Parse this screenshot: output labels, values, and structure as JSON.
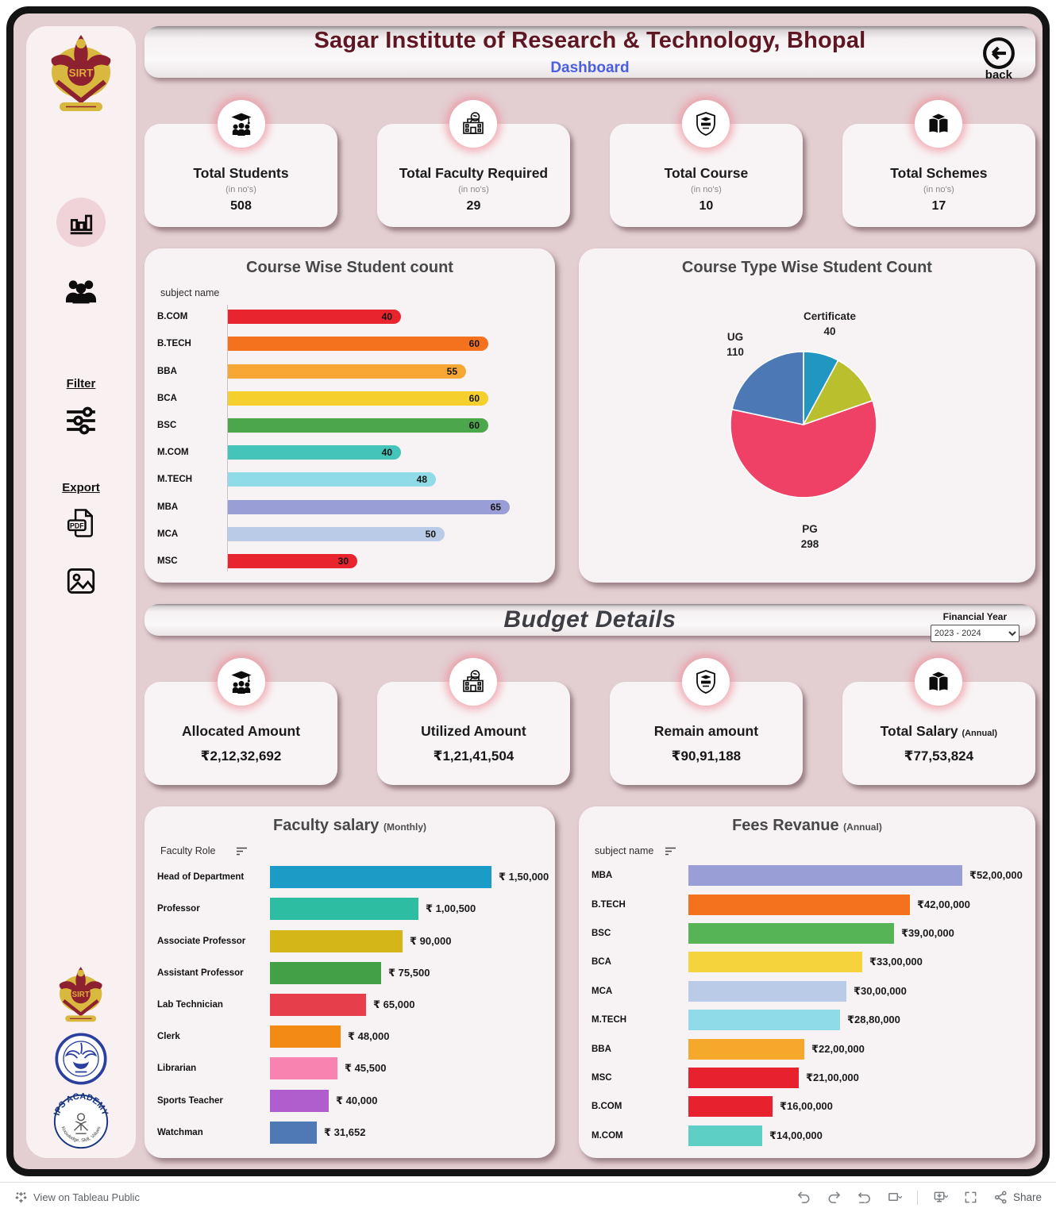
{
  "header": {
    "title": "Sagar Institute of Research & Technology, Bhopal",
    "subtitle": "Dashboard",
    "back_label": "back"
  },
  "sidebar": {
    "filter_label": "Filter",
    "export_label": "Export",
    "icons": [
      "bar-chart-icon",
      "people-icon",
      "sliders-icon",
      "pdf-export-icon",
      "image-export-icon"
    ],
    "logos": {
      "sirt_text": "SIRT",
      "ips_top_text": "IPS ACADEMY",
      "ips_bottom_text": "Knowledge, Skill, Values"
    }
  },
  "kpis_top": [
    {
      "label": "Total Students",
      "sub": "(in no's)",
      "value": "508",
      "icon": "students-icon"
    },
    {
      "label": "Total Faculty Required",
      "sub": "(in no's)",
      "value": "29",
      "icon": "faculty-building-icon"
    },
    {
      "label": "Total Course",
      "sub": "(in no's)",
      "value": "10",
      "icon": "college-shield-icon"
    },
    {
      "label": "Total Schemes",
      "sub": "(in no's)",
      "value": "17",
      "icon": "schemes-book-icon"
    }
  ],
  "budget": {
    "section_title": "Budget Details",
    "financial_year_label": "Financial Year",
    "financial_year_value": "2023 - 2024",
    "kpis": [
      {
        "label": "Allocated Amount",
        "value": "₹2,12,32,692",
        "icon": "students-icon"
      },
      {
        "label": "Utilized Amount",
        "value": "₹1,21,41,504",
        "icon": "faculty-building-icon"
      },
      {
        "label": "Remain amount",
        "value": "₹90,91,188",
        "icon": "college-shield-icon"
      },
      {
        "label": "Total Salary",
        "suffix": "(Annual)",
        "value": "₹77,53,824",
        "icon": "schemes-book-icon"
      }
    ]
  },
  "chart_data": [
    {
      "type": "bar",
      "title": "Course Wise Student count",
      "axis_label": "subject name",
      "orientation": "horizontal",
      "categories": [
        "B.COM",
        "B.TECH",
        "BBA",
        "BCA",
        "BSC",
        "M.COM",
        "M.TECH",
        "MBA",
        "MCA",
        "MSC"
      ],
      "values": [
        40,
        60,
        55,
        60,
        60,
        40,
        48,
        65,
        50,
        30
      ],
      "display_values": [
        "40",
        "60",
        "55",
        "60",
        "60",
        "40",
        "48",
        "65",
        "50",
        "30"
      ],
      "colors": [
        "#e8252e",
        "#f4711d",
        "#f7a733",
        "#f5d02d",
        "#4ca64c",
        "#45c4ba",
        "#8fdbe8",
        "#9a9ed6",
        "#b9cbe6",
        "#e8252e"
      ],
      "xlim": [
        0,
        65
      ],
      "value_labels": "inside-bar-end",
      "grid": false
    },
    {
      "type": "pie",
      "title": "Course Type Wise Student Count",
      "total": 508,
      "slices": [
        {
          "label": "Certificate",
          "value": 40,
          "color": "#2196c0"
        },
        {
          "label": "",
          "value": 60,
          "color": "#b9bf2d"
        },
        {
          "label": "PG",
          "value": 298,
          "color": "#ef4066"
        },
        {
          "label": "UG",
          "value": 110,
          "color": "#4c78b5"
        }
      ],
      "start_angle_deg": 0,
      "legend_position": "outside-labels"
    },
    {
      "type": "bar",
      "title": "Faculty salary",
      "title_suffix": "(Monthly)",
      "axis_label": "Faculty Role",
      "orientation": "horizontal",
      "categories": [
        "Head of Department",
        "Professor",
        "Associate Professor",
        "Assistant Professor",
        "Lab Technician",
        "Clerk",
        "Librarian",
        "Sports Teacher",
        "Watchman"
      ],
      "values": [
        150000,
        100500,
        90000,
        75500,
        65000,
        48000,
        45500,
        40000,
        31652
      ],
      "display_values": [
        "₹ 1,50,000",
        "₹ 1,00,500",
        "₹ 90,000",
        "₹ 75,500",
        "₹ 65,000",
        "₹ 48,000",
        "₹ 45,500",
        "₹ 40,000",
        "₹ 31,652"
      ],
      "colors": [
        "#1a9cc7",
        "#2dbda3",
        "#d4b618",
        "#43a047",
        "#e63e4b",
        "#f28a14",
        "#f983b0",
        "#b05ecd",
        "#4e79b5"
      ],
      "xlim": [
        0,
        150000
      ],
      "value_labels": "outside-bar-end",
      "grid": false,
      "sortable": true
    },
    {
      "type": "bar",
      "title": "Fees Revanue",
      "title_suffix": "(Annual)",
      "axis_label": "subject name",
      "orientation": "horizontal",
      "categories": [
        "MBA",
        "B.TECH",
        "BSC",
        "BCA",
        "MCA",
        "M.TECH",
        "BBA",
        "MSC",
        "B.COM",
        "M.COM"
      ],
      "values": [
        5200000,
        4200000,
        3900000,
        3300000,
        3000000,
        2880000,
        2200000,
        2100000,
        1600000,
        1400000
      ],
      "display_values": [
        "₹52,00,000",
        "₹42,00,000",
        "₹39,00,000",
        "₹33,00,000",
        "₹30,00,000",
        "₹28,80,000",
        "₹22,00,000",
        "₹21,00,000",
        "₹16,00,000",
        "₹14,00,000"
      ],
      "colors": [
        "#9a9ed6",
        "#f4711d",
        "#56b456",
        "#f5d33d",
        "#b9cbe6",
        "#8fdbe8",
        "#f5a82c",
        "#e8212e",
        "#e8212e",
        "#5ecfc4"
      ],
      "xlim": [
        0,
        5200000
      ],
      "value_labels": "outside-bar-end",
      "grid": false,
      "sortable": true
    }
  ],
  "toolbar": {
    "left_label": "View on Tableau Public",
    "share_label": "Share"
  }
}
